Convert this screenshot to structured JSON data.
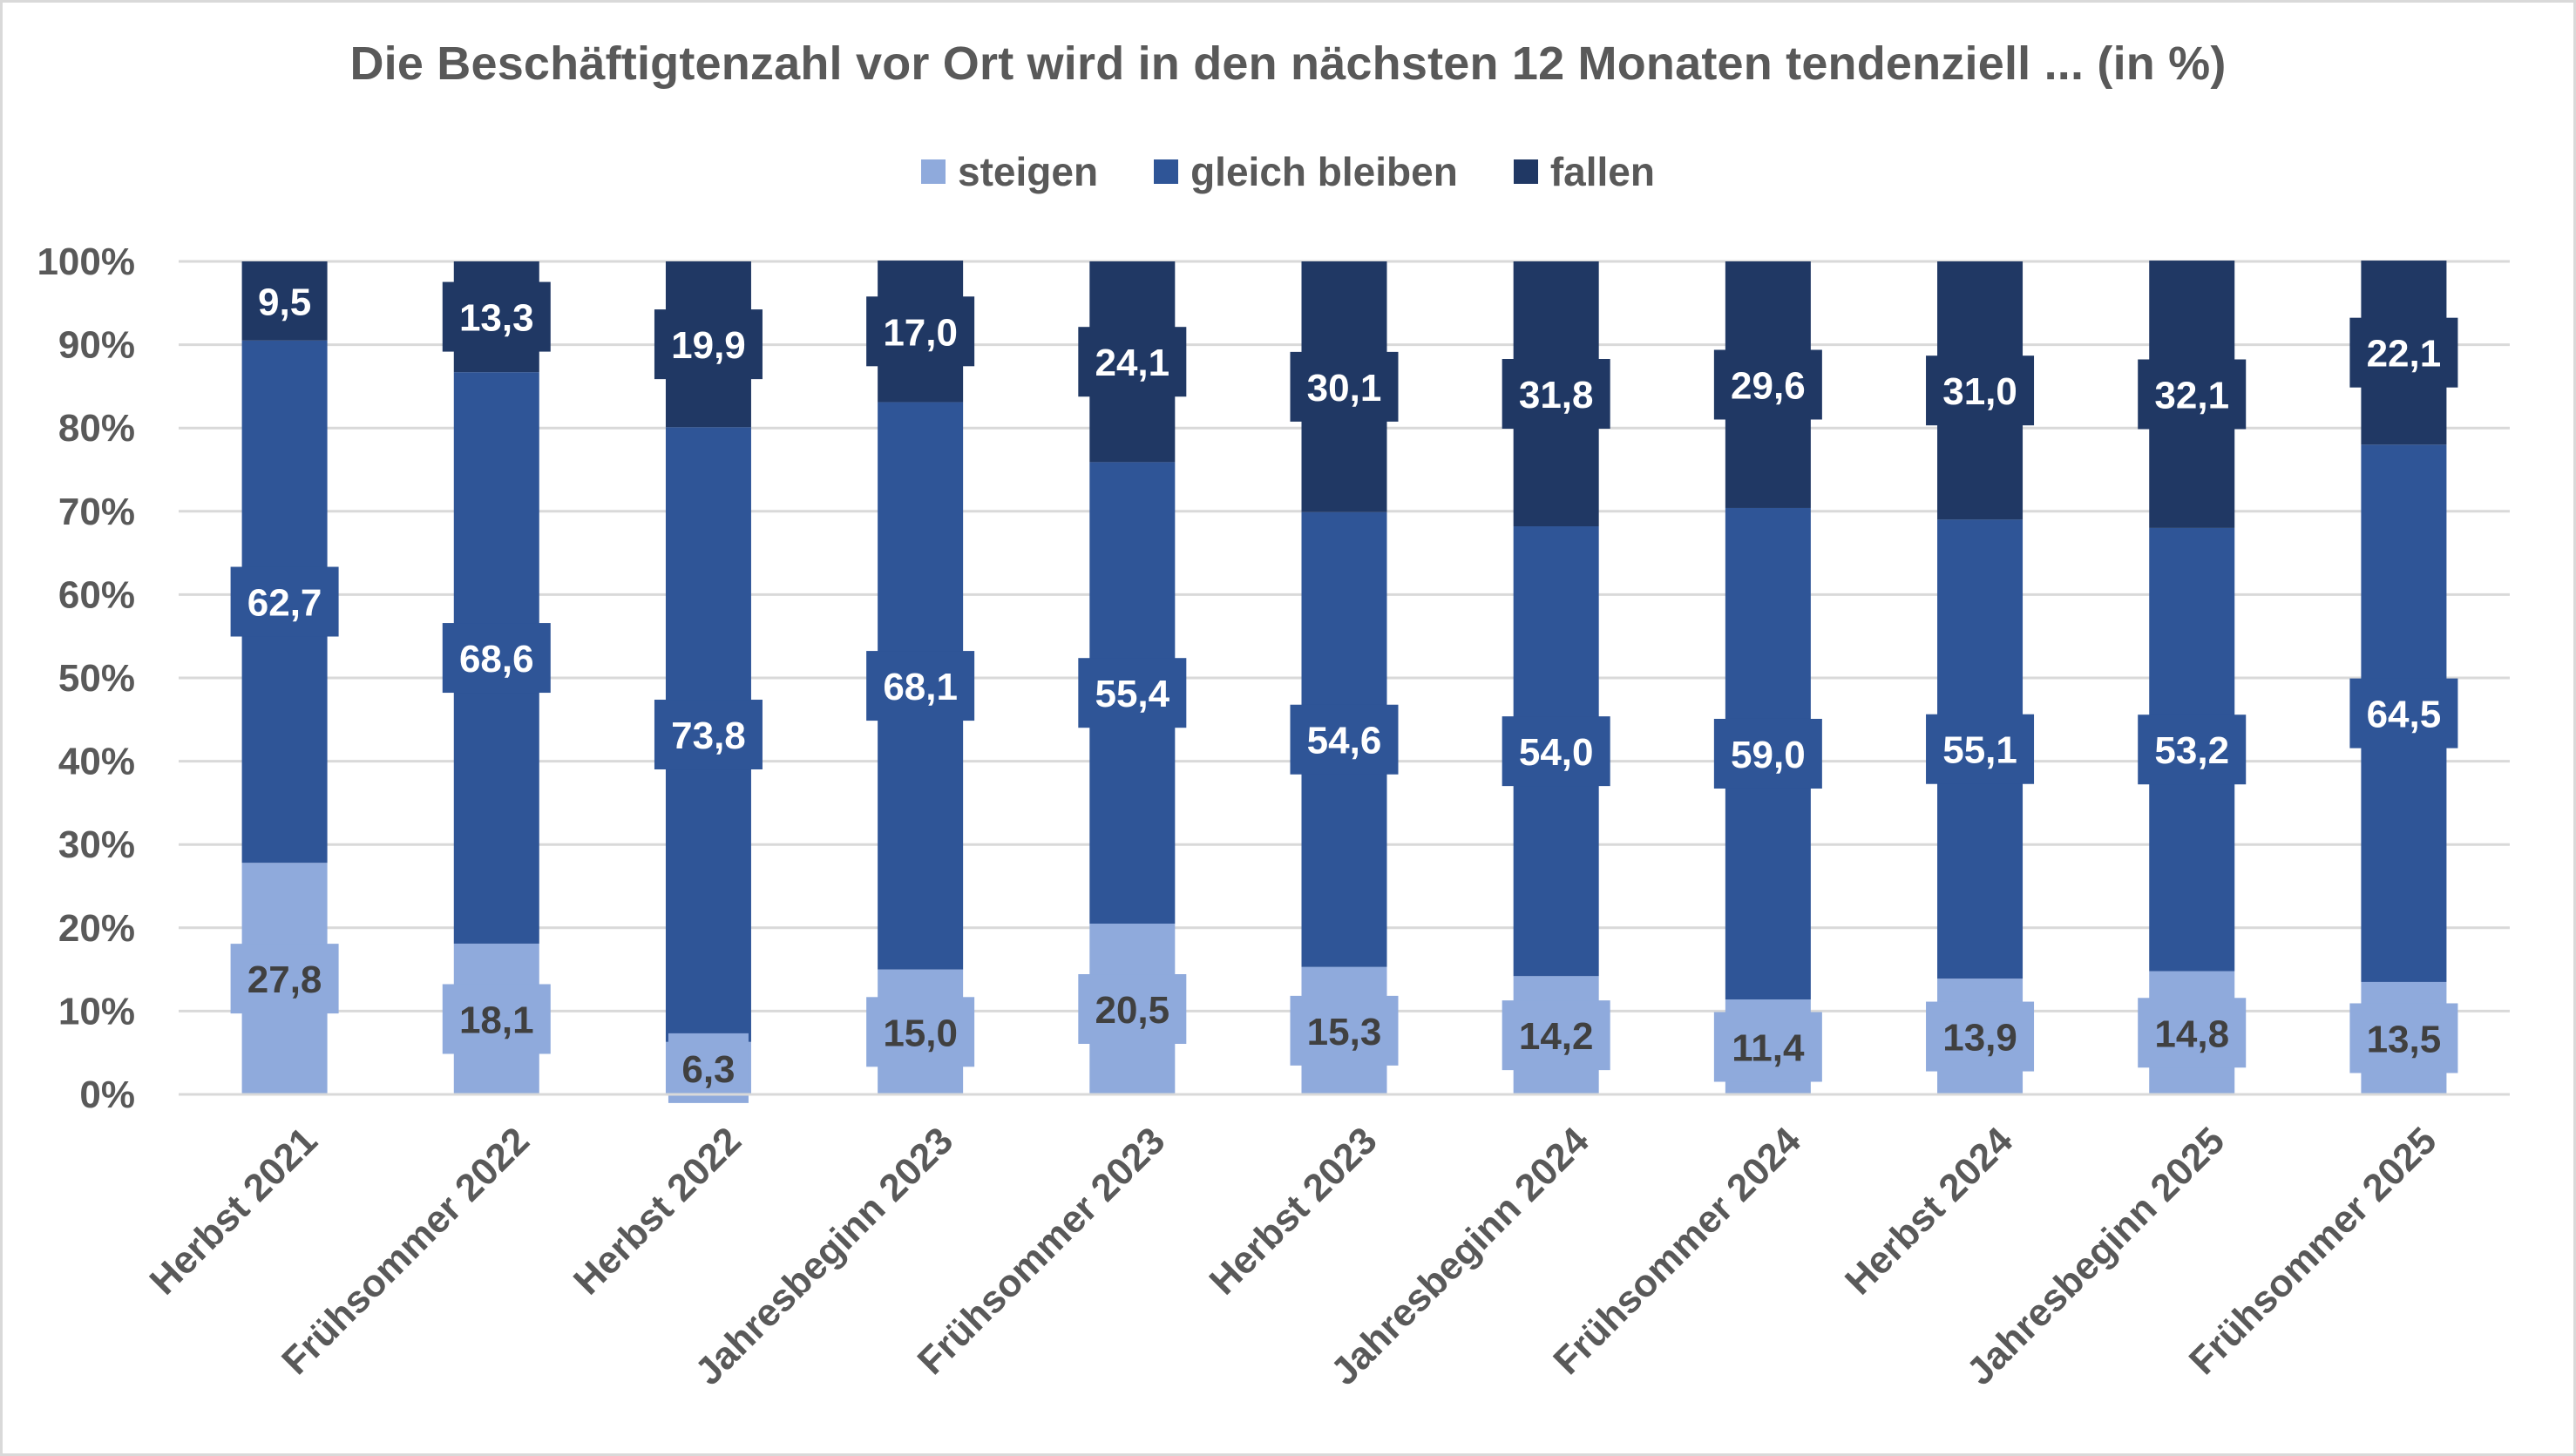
{
  "chart_data": {
    "type": "bar",
    "stacked": true,
    "percent_stacked": true,
    "title": "Die Beschäftigtenzahl vor Ort wird in den nächsten 12 Monaten tendenziell ... (in %)",
    "categories": [
      "Herbst 2021",
      "Frühsommer 2022",
      "Herbst 2022",
      "Jahresbeginn 2023",
      "Frühsommer 2023",
      "Herbst 2023",
      "Jahresbeginn 2024",
      "Frühsommer 2024",
      "Herbst 2024",
      "Jahresbeginn 2025",
      "Frühsommer 2025"
    ],
    "series": [
      {
        "name": "steigen",
        "values": [
          27.8,
          18.1,
          6.3,
          15.0,
          20.5,
          15.3,
          14.2,
          11.4,
          13.9,
          14.8,
          13.5
        ],
        "labels": [
          "27,8",
          "18,1",
          "6,3",
          "15,0",
          "20,5",
          "15,3",
          "14,2",
          "11,4",
          "13,9",
          "14,8",
          "13,5"
        ],
        "color": "#8faadc",
        "label_color": "#404040"
      },
      {
        "name": "gleich bleiben",
        "values": [
          62.7,
          68.6,
          73.8,
          68.1,
          55.4,
          54.6,
          54.0,
          59.0,
          55.1,
          53.2,
          64.5
        ],
        "labels": [
          "62,7",
          "68,6",
          "73,8",
          "68,1",
          "55,4",
          "54,6",
          "54,0",
          "59,0",
          "55,1",
          "53,2",
          "64,5"
        ],
        "color": "#2f5597",
        "label_color": "#ffffff"
      },
      {
        "name": "fallen",
        "values": [
          9.5,
          13.3,
          19.9,
          17.0,
          24.1,
          30.1,
          31.8,
          29.6,
          31.0,
          32.1,
          22.1
        ],
        "labels": [
          "9,5",
          "13,3",
          "19,9",
          "17,0",
          "24,1",
          "30,1",
          "31,8",
          "29,6",
          "31,0",
          "32,1",
          "22,1"
        ],
        "color": "#203864",
        "label_color": "#ffffff"
      }
    ],
    "y_ticks": [
      "0%",
      "10%",
      "20%",
      "30%",
      "40%",
      "50%",
      "60%",
      "70%",
      "80%",
      "90%",
      "100%"
    ],
    "ylim": [
      0,
      100
    ],
    "grid": true,
    "legend_position": "top"
  }
}
